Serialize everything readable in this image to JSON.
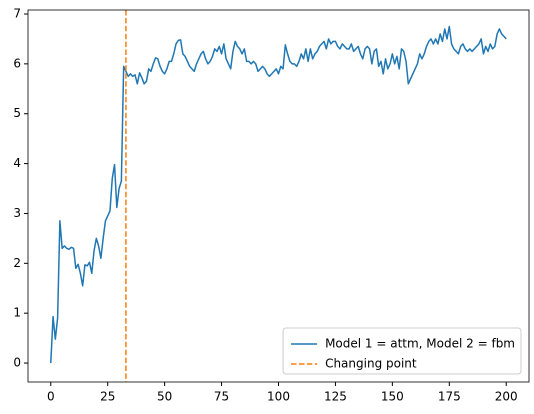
{
  "chart_data": {
    "type": "line",
    "x": [
      0,
      1,
      2,
      3,
      4,
      5,
      6,
      7,
      8,
      9,
      10,
      11,
      12,
      13,
      14,
      15,
      16,
      17,
      18,
      19,
      20,
      21,
      22,
      23,
      24,
      25,
      26,
      27,
      28,
      29,
      30,
      31,
      32,
      33,
      34,
      35,
      36,
      37,
      38,
      39,
      40,
      41,
      42,
      43,
      44,
      45,
      46,
      47,
      48,
      49,
      50,
      51,
      52,
      53,
      54,
      55,
      56,
      57,
      58,
      59,
      60,
      61,
      62,
      63,
      64,
      65,
      66,
      67,
      68,
      69,
      70,
      71,
      72,
      73,
      74,
      75,
      76,
      77,
      78,
      79,
      80,
      81,
      82,
      83,
      84,
      85,
      86,
      87,
      88,
      89,
      90,
      91,
      92,
      93,
      94,
      95,
      96,
      97,
      98,
      99,
      100,
      101,
      102,
      103,
      104,
      105,
      106,
      107,
      108,
      109,
      110,
      111,
      112,
      113,
      114,
      115,
      116,
      117,
      118,
      119,
      120,
      121,
      122,
      123,
      124,
      125,
      126,
      127,
      128,
      129,
      130,
      131,
      132,
      133,
      134,
      135,
      136,
      137,
      138,
      139,
      140,
      141,
      142,
      143,
      144,
      145,
      146,
      147,
      148,
      149,
      150,
      151,
      152,
      153,
      154,
      155,
      156,
      157,
      158,
      159,
      160,
      161,
      162,
      163,
      164,
      165,
      166,
      167,
      168,
      169,
      170,
      171,
      172,
      173,
      174,
      175,
      176,
      177,
      178,
      179,
      180,
      181,
      182,
      183,
      184,
      185,
      186,
      187,
      188,
      189,
      190,
      191,
      192,
      193,
      194,
      195,
      196,
      197,
      198,
      199,
      200
    ],
    "series": [
      {
        "name": "Model 1 = attm, Model 2 = fbm",
        "color": "#1f77b4",
        "values": [
          0,
          0.93,
          0.48,
          0.9,
          2.85,
          2.3,
          2.35,
          2.3,
          2.28,
          2.32,
          2.3,
          1.9,
          1.98,
          1.8,
          1.55,
          1.97,
          1.95,
          2.02,
          1.8,
          2.25,
          2.5,
          2.35,
          2.1,
          2.5,
          2.85,
          2.95,
          3.05,
          3.7,
          3.98,
          3.12,
          3.5,
          3.65,
          5.95,
          5.85,
          5.75,
          5.8,
          5.75,
          5.78,
          5.6,
          5.82,
          5.72,
          5.6,
          5.65,
          5.9,
          5.85,
          6.0,
          6.12,
          6.1,
          5.95,
          5.85,
          5.8,
          5.9,
          6.05,
          6.05,
          6.2,
          6.4,
          6.47,
          6.48,
          6.2,
          6.15,
          6.05,
          5.95,
          5.9,
          5.85,
          6.0,
          6.1,
          6.2,
          6.25,
          6.1,
          6.0,
          6.05,
          6.15,
          6.3,
          6.25,
          6.35,
          6.2,
          6.4,
          6.1,
          6.0,
          5.9,
          6.25,
          6.45,
          6.35,
          6.3,
          6.2,
          6.3,
          6.05,
          6.05,
          6.0,
          6.05,
          6.0,
          5.85,
          5.9,
          5.95,
          5.9,
          5.8,
          5.75,
          5.8,
          5.85,
          5.9,
          5.8,
          5.95,
          5.9,
          6.38,
          6.2,
          6.05,
          6.0,
          6.0,
          5.95,
          6.05,
          6.2,
          6.1,
          6.3,
          6.05,
          6.3,
          6.1,
          6.2,
          6.25,
          6.35,
          6.4,
          6.45,
          6.3,
          6.5,
          6.4,
          6.45,
          6.45,
          6.35,
          6.3,
          6.4,
          6.35,
          6.3,
          6.3,
          6.4,
          6.25,
          6.3,
          6.35,
          6.2,
          6.1,
          6.3,
          6.35,
          6.3,
          6.0,
          6.25,
          6.3,
          5.95,
          6.05,
          5.8,
          6.1,
          5.9,
          6.0,
          6.2,
          6.0,
          6.15,
          5.9,
          6.3,
          6.25,
          6.05,
          5.6,
          5.7,
          5.8,
          5.9,
          6.0,
          6.2,
          6.1,
          6.2,
          6.35,
          6.45,
          6.5,
          6.4,
          6.5,
          6.4,
          6.6,
          6.45,
          6.7,
          6.5,
          6.75,
          6.4,
          6.3,
          6.25,
          6.2,
          6.35,
          6.4,
          6.3,
          6.25,
          6.3,
          6.25,
          6.3,
          6.35,
          6.4,
          6.5,
          6.2,
          6.35,
          6.25,
          6.4,
          6.3,
          6.35,
          6.6,
          6.7,
          6.6,
          6.55,
          6.5
        ]
      }
    ],
    "vlines": [
      {
        "name": "Changing point",
        "color": "#ff7f0e",
        "x": 33
      }
    ],
    "xlim": [
      -10,
      210
    ],
    "xticks": [
      0,
      25,
      50,
      75,
      100,
      125,
      150,
      175,
      200
    ],
    "ylim": [
      -0.38,
      7.08
    ],
    "yticks": [
      0,
      1,
      2,
      3,
      4,
      5,
      6,
      7
    ],
    "legend": "lower right"
  }
}
